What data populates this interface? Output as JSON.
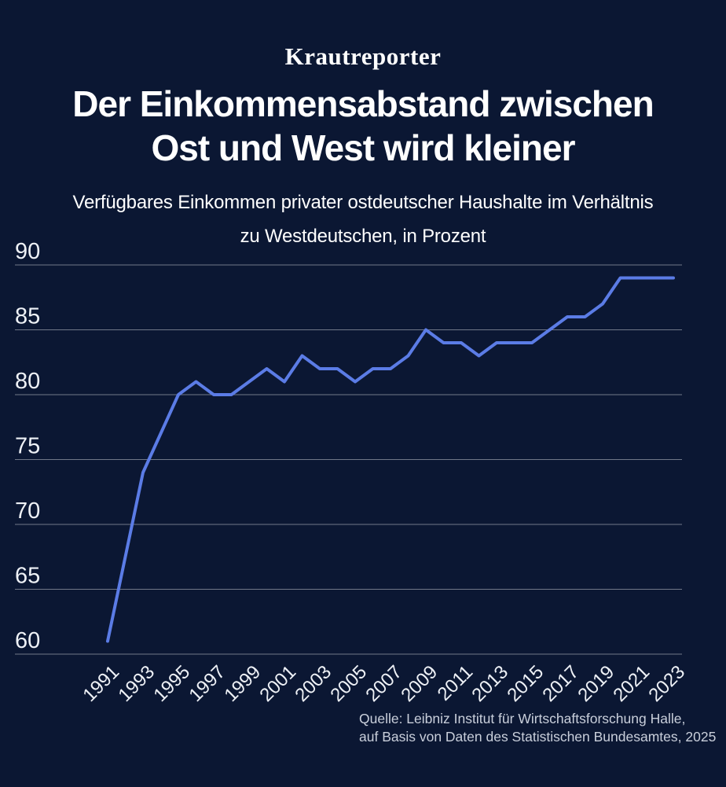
{
  "brand": {
    "logo_text": "Krautreporter"
  },
  "header": {
    "title_line1": "Der Einkommensabstand zwischen",
    "title_line2": "Ost und West wird kleiner",
    "subtitle_line1": "Verfügbares Einkommen privater ostdeutscher Haushalte im Verhältnis",
    "subtitle_line2": "zu Westdeutschen, in Prozent"
  },
  "chart_data": {
    "type": "line",
    "title": "Der Einkommensabstand zwischen Ost und West wird kleiner",
    "subtitle": "Verfügbares Einkommen privater ostdeutscher Haushalte im Verhältnis zu Westdeutschen, in Prozent",
    "xlabel": "",
    "ylabel": "Prozent",
    "x": [
      1991,
      1992,
      1993,
      1994,
      1995,
      1996,
      1997,
      1998,
      1999,
      2000,
      2001,
      2002,
      2003,
      2004,
      2005,
      2006,
      2007,
      2008,
      2009,
      2010,
      2011,
      2012,
      2013,
      2014,
      2015,
      2016,
      2017,
      2018,
      2019,
      2020,
      2021,
      2022,
      2023
    ],
    "values": [
      61,
      67.5,
      74,
      77,
      80,
      81,
      80,
      80,
      81,
      82,
      81,
      83,
      82,
      82,
      81,
      82,
      82,
      83,
      85,
      84,
      84,
      83,
      84,
      84,
      84,
      85,
      86,
      86,
      87,
      89,
      89,
      89,
      89
    ],
    "ylim": [
      60,
      90
    ],
    "y_ticks": [
      90,
      85,
      80,
      75,
      70,
      65,
      60
    ],
    "x_tick_years": [
      1991,
      1993,
      1995,
      1997,
      1999,
      2001,
      2003,
      2005,
      2007,
      2009,
      2011,
      2013,
      2015,
      2017,
      2019,
      2021,
      2023
    ],
    "grid": true,
    "legend": "none"
  },
  "colors": {
    "background": "#0b1733",
    "line": "#5b7ce6",
    "grid": "rgba(255,255,255,0.42)",
    "tick_label": "#eef1f6",
    "title_text": "#ffffff",
    "source_text": "#c9cfdb"
  },
  "source": {
    "line1": "Quelle: Leibniz Institut für Wirtschaftsforschung Halle,",
    "line2": "auf Basis von Daten des Statistischen Bundesamtes, 2025"
  }
}
